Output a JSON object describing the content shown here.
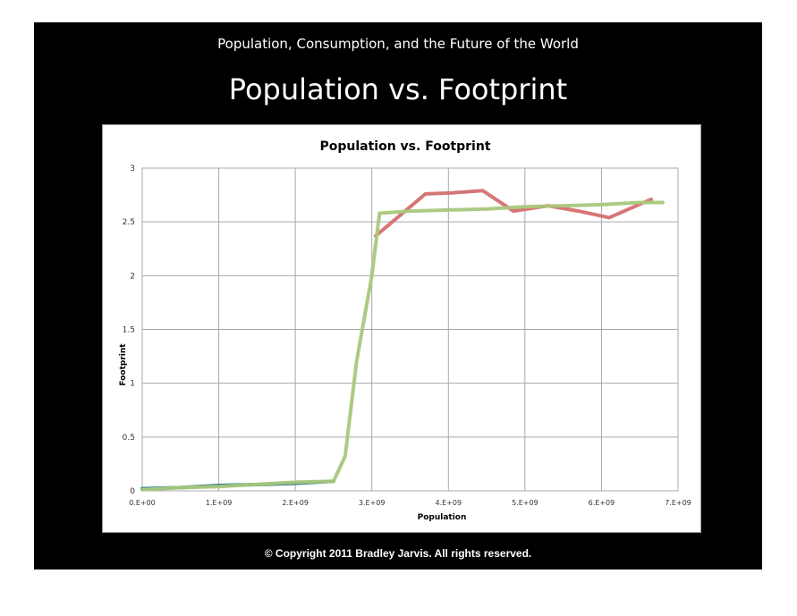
{
  "slide": {
    "subtitle": "Population, Consumption, and the Future of the World",
    "title": "Population vs. Footprint",
    "copyright": "© Copyright 2011 Bradley Jarvis.  All rights reserved."
  },
  "chart_data": {
    "type": "line",
    "title": "Population vs. Footprint",
    "xlabel": "Population",
    "ylabel": "Footprint",
    "xlim": [
      0,
      7000000000
    ],
    "ylim": [
      0,
      3
    ],
    "x_ticks": [
      0,
      1000000000,
      2000000000,
      3000000000,
      4000000000,
      5000000000,
      6000000000,
      7000000000
    ],
    "x_tick_labels": [
      "0.E+00",
      "1.E+09",
      "2.E+09",
      "3.E+09",
      "4.E+09",
      "5.E+09",
      "6.E+09",
      "7.E+09"
    ],
    "y_ticks": [
      0,
      0.5,
      1,
      1.5,
      2,
      2.5,
      3
    ],
    "y_tick_labels": [
      "0",
      "0.5",
      "1",
      "1.5",
      "2",
      "2.5",
      "3"
    ],
    "grid": true,
    "series": [
      {
        "color": "#d46f6f",
        "points": [
          [
            3050000000,
            2.37
          ],
          [
            3300000000,
            2.52
          ],
          [
            3700000000,
            2.76
          ],
          [
            4050000000,
            2.77
          ],
          [
            4450000000,
            2.79
          ],
          [
            4850000000,
            2.6
          ],
          [
            5300000000,
            2.65
          ],
          [
            5700000000,
            2.6
          ],
          [
            6100000000,
            2.54
          ],
          [
            6650000000,
            2.71
          ]
        ]
      },
      {
        "color": "#2a7a8a",
        "points": [
          [
            0,
            0.02
          ],
          [
            500000000,
            0.03
          ],
          [
            1000000000,
            0.05
          ],
          [
            1600000000,
            0.06
          ],
          [
            2000000000,
            0.07
          ],
          [
            2500000000,
            0.09
          ]
        ]
      },
      {
        "color": "#a9c77c",
        "points": [
          [
            0,
            0.01
          ],
          [
            500000000,
            0.03
          ],
          [
            1000000000,
            0.04
          ],
          [
            1500000000,
            0.06
          ],
          [
            2000000000,
            0.08
          ],
          [
            2500000000,
            0.09
          ],
          [
            2650000000,
            0.32
          ],
          [
            2800000000,
            1.2
          ],
          [
            3000000000,
            2.0
          ],
          [
            3100000000,
            2.58
          ],
          [
            3500000000,
            2.6
          ],
          [
            4000000000,
            2.61
          ],
          [
            4500000000,
            2.62
          ],
          [
            5000000000,
            2.64
          ],
          [
            5500000000,
            2.65
          ],
          [
            6000000000,
            2.66
          ],
          [
            6500000000,
            2.68
          ],
          [
            6800000000,
            2.68
          ]
        ]
      }
    ]
  }
}
